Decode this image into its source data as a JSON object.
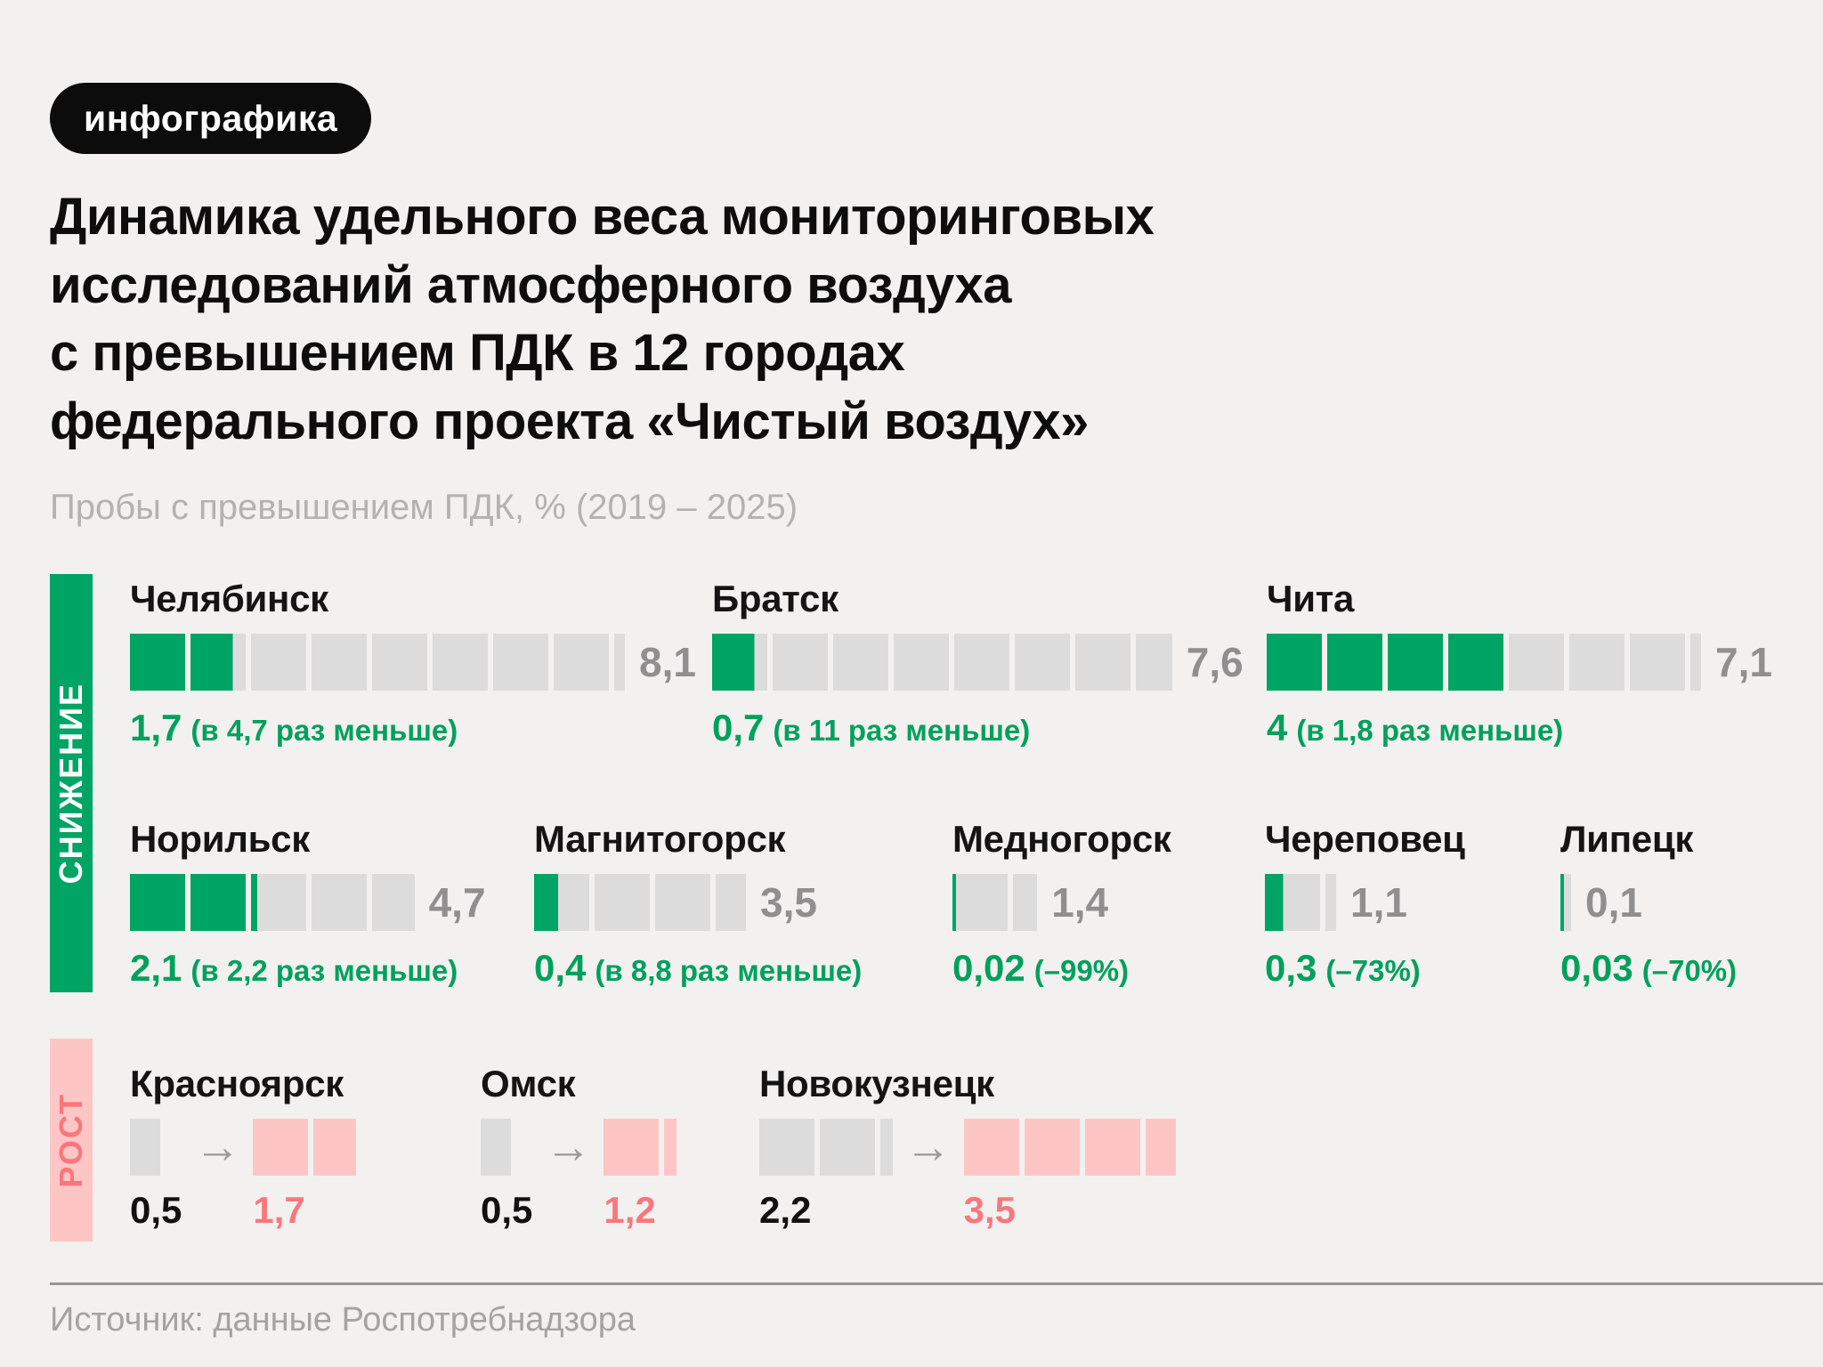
{
  "badge": "инфографика",
  "title_lines": [
    "Динамика удельного веса мониторинговых",
    "исследований атмосферного воздуха",
    "с превышением ПДК в 12 городах",
    "федерального проекта «Чистый воздух»"
  ],
  "subtitle": "Пробы с превышением ПДК, % (2019 – 2025)",
  "sidebar": {
    "decrease": "СНИЖЕНИЕ",
    "growth": "РОСТ"
  },
  "footer": {
    "source": "Источник: данные Роспотребнадзора"
  },
  "colors": {
    "background": "#f2f1ef",
    "green": "#00a465",
    "green_text": "#00a05e",
    "gray_segment": "#dcdcdc",
    "gray_value": "#8f8f8f",
    "pink": "#fdc6c5",
    "pink_text": "#f8777d",
    "black": "#111111",
    "arrow_gray": "#9a9a9a"
  },
  "chart_data": {
    "type": "bar",
    "title": "Динамика удельного веса мониторинговых исследований атмосферного воздуха с превышением ПДК в 12 городах федерального проекта «Чистый воздух»",
    "subtitle": "Пробы с превышением ПДК, % (2019 – 2025)",
    "ylabel": "Пробы с превышением ПДК, %",
    "period": "2019 – 2025",
    "legend_position": "left-vertical",
    "sections": [
      {
        "label": "СНИЖЕНИЕ",
        "direction": "decrease",
        "cities": [
          {
            "name": "Челябинск",
            "from": 8.1,
            "to": 1.7,
            "from_label": "8,1",
            "to_label": "1,7",
            "note": "(в 4,7 раз меньше)"
          },
          {
            "name": "Братск",
            "from": 7.6,
            "to": 0.7,
            "from_label": "7,6",
            "to_label": "0,7",
            "note": "(в 11 раз меньше)"
          },
          {
            "name": "Чита",
            "from": 7.1,
            "to": 4,
            "from_label": "7,1",
            "to_label": "4",
            "note": "(в 1,8 раз меньше)"
          },
          {
            "name": "Норильск",
            "from": 4.7,
            "to": 2.1,
            "from_label": "4,7",
            "to_label": "2,1",
            "note": "(в 2,2 раз меньше)"
          },
          {
            "name": "Магнитогорск",
            "from": 3.5,
            "to": 0.4,
            "from_label": "3,5",
            "to_label": "0,4",
            "note": "(в 8,8 раз меньше)"
          },
          {
            "name": "Медногорск",
            "from": 1.4,
            "to": 0.02,
            "from_label": "1,4",
            "to_label": "0,02",
            "note": "(–99%)"
          },
          {
            "name": "Череповец",
            "from": 1.1,
            "to": 0.3,
            "from_label": "1,1",
            "to_label": "0,3",
            "note": "(–73%)"
          },
          {
            "name": "Липецк",
            "from": 0.1,
            "to": 0.03,
            "from_label": "0,1",
            "to_label": "0,03",
            "note": "(–70%)"
          }
        ]
      },
      {
        "label": "РОСТ",
        "direction": "growth",
        "cities": [
          {
            "name": "Красноярск",
            "from": 0.5,
            "to": 1.7,
            "from_label": "0,5",
            "to_label": "1,7"
          },
          {
            "name": "Омск",
            "from": 0.5,
            "to": 1.2,
            "from_label": "0,5",
            "to_label": "1,2"
          },
          {
            "name": "Новокузнецк",
            "from": 2.2,
            "to": 3.5,
            "from_label": "2,2",
            "to_label": "3,5"
          }
        ]
      }
    ]
  }
}
